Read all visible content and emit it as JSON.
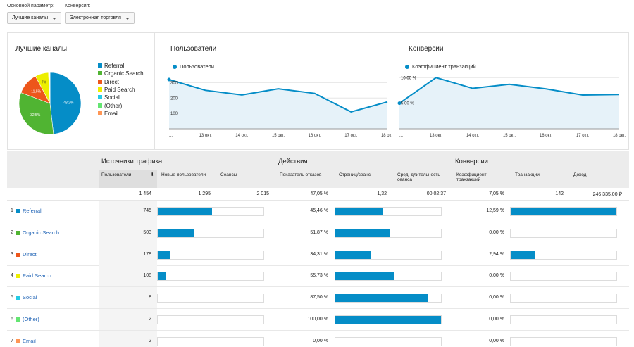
{
  "controls": {
    "primary_label": "Основной параметр:",
    "primary_value": "Лучшие каналы",
    "conversion_label": "Конверсия:",
    "conversion_value": "Электронная торговля"
  },
  "colors": {
    "referral": "#058dc7",
    "organic": "#50b432",
    "direct": "#ed561b",
    "paid": "#edef00",
    "social": "#24cbe5",
    "other": "#64e572",
    "email": "#ff9655",
    "accent": "#058dc7"
  },
  "pie": {
    "title": "Лучшие каналы",
    "labels": [
      "48,2%",
      "32,5%",
      "11,5%",
      "7%"
    ],
    "legend": [
      "Referral",
      "Organic Search",
      "Direct",
      "Paid Search",
      "Social",
      "(Other)",
      "Email"
    ]
  },
  "users_chart": {
    "title": "Пользователи",
    "legend": "Пользователи",
    "y_ticks": [
      "300",
      "200",
      "100"
    ],
    "x_ticks": [
      "...",
      "13 окт.",
      "14 окт.",
      "15 окт.",
      "16 окт.",
      "17 окт.",
      "18 окт."
    ]
  },
  "conv_chart": {
    "title": "Конверсии",
    "legend": "Коэффициент транзакций",
    "y_ticks": [
      "10,00 %",
      "5,00 %"
    ],
    "x_ticks": [
      "...",
      "13 окт.",
      "14 окт.",
      "15 окт.",
      "16 окт.",
      "17 окт.",
      "18 окт."
    ]
  },
  "chart_data": [
    {
      "type": "pie",
      "title": "Лучшие каналы",
      "categories": [
        "Referral",
        "Organic Search",
        "Direct",
        "Paid Search",
        "Social",
        "(Other)",
        "Email"
      ],
      "values": [
        48.2,
        32.5,
        11.5,
        7.0,
        0.5,
        0.2,
        0.1
      ]
    },
    {
      "type": "line",
      "title": "Пользователи",
      "x": [
        "...",
        "13 окт.",
        "14 окт.",
        "15 окт.",
        "16 окт.",
        "17 окт.",
        "18 окт."
      ],
      "series": [
        {
          "name": "Пользователи",
          "values": [
            320,
            250,
            220,
            260,
            230,
            110,
            175
          ]
        }
      ],
      "ylim": [
        0,
        320
      ],
      "grid": "horizontal"
    },
    {
      "type": "line",
      "title": "Конверсии",
      "x": [
        "...",
        "13 окт.",
        "14 окт.",
        "15 окт.",
        "16 окт.",
        "17 окт.",
        "18 окт."
      ],
      "series": [
        {
          "name": "Коэффициент транзакций",
          "values": [
            5.0,
            10.0,
            7.9,
            8.7,
            7.8,
            6.6,
            6.7
          ]
        }
      ],
      "ylim": [
        0,
        11
      ],
      "grid": "horizontal"
    }
  ],
  "table": {
    "groups": [
      "Источники трафика",
      "Действия",
      "Конверсии"
    ],
    "columns": [
      "Пользователи",
      "Новые пользователи",
      "Сеансы",
      "Показатель отказов",
      "Страниц/сеанс",
      "Сред. длительность сеанса",
      "Коэффициент транзакций",
      "Транзакции",
      "Доход"
    ],
    "totals": [
      "1 454",
      "1 295",
      "2 015",
      "47,05 %",
      "1,32",
      "00:02:37",
      "7,05 %",
      "142",
      "246 335,00 ₽"
    ],
    "rows": [
      {
        "n": "1",
        "name": "Referral",
        "color": "#058dc7",
        "users": "745",
        "bounce": "45,46 %",
        "conv": "12,59 %",
        "f_new": 0.51,
        "f_pages": 0.45,
        "f_tx": 1.0
      },
      {
        "n": "2",
        "name": "Organic Search",
        "color": "#50b432",
        "users": "503",
        "bounce": "51,87 %",
        "conv": "0,00 %",
        "f_new": 0.34,
        "f_pages": 0.51,
        "f_tx": 0.0
      },
      {
        "n": "3",
        "name": "Direct",
        "color": "#ed561b",
        "users": "178",
        "bounce": "34,31 %",
        "conv": "2,94 %",
        "f_new": 0.12,
        "f_pages": 0.34,
        "f_tx": 0.23
      },
      {
        "n": "4",
        "name": "Paid Search",
        "color": "#edef00",
        "users": "108",
        "bounce": "55,73 %",
        "conv": "0,00 %",
        "f_new": 0.07,
        "f_pages": 0.55,
        "f_tx": 0.0
      },
      {
        "n": "5",
        "name": "Social",
        "color": "#24cbe5",
        "users": "8",
        "bounce": "87,50 %",
        "conv": "0,00 %",
        "f_new": 0.005,
        "f_pages": 0.87,
        "f_tx": 0.0
      },
      {
        "n": "6",
        "name": "(Other)",
        "color": "#64e572",
        "users": "2",
        "bounce": "100,00 %",
        "conv": "0,00 %",
        "f_new": 0.002,
        "f_pages": 1.0,
        "f_tx": 0.0
      },
      {
        "n": "7",
        "name": "Email",
        "color": "#ff9655",
        "users": "2",
        "bounce": "0,00 %",
        "conv": "0,00 %",
        "f_new": 0.002,
        "f_pages": 0.0,
        "f_tx": 0.0
      }
    ]
  }
}
